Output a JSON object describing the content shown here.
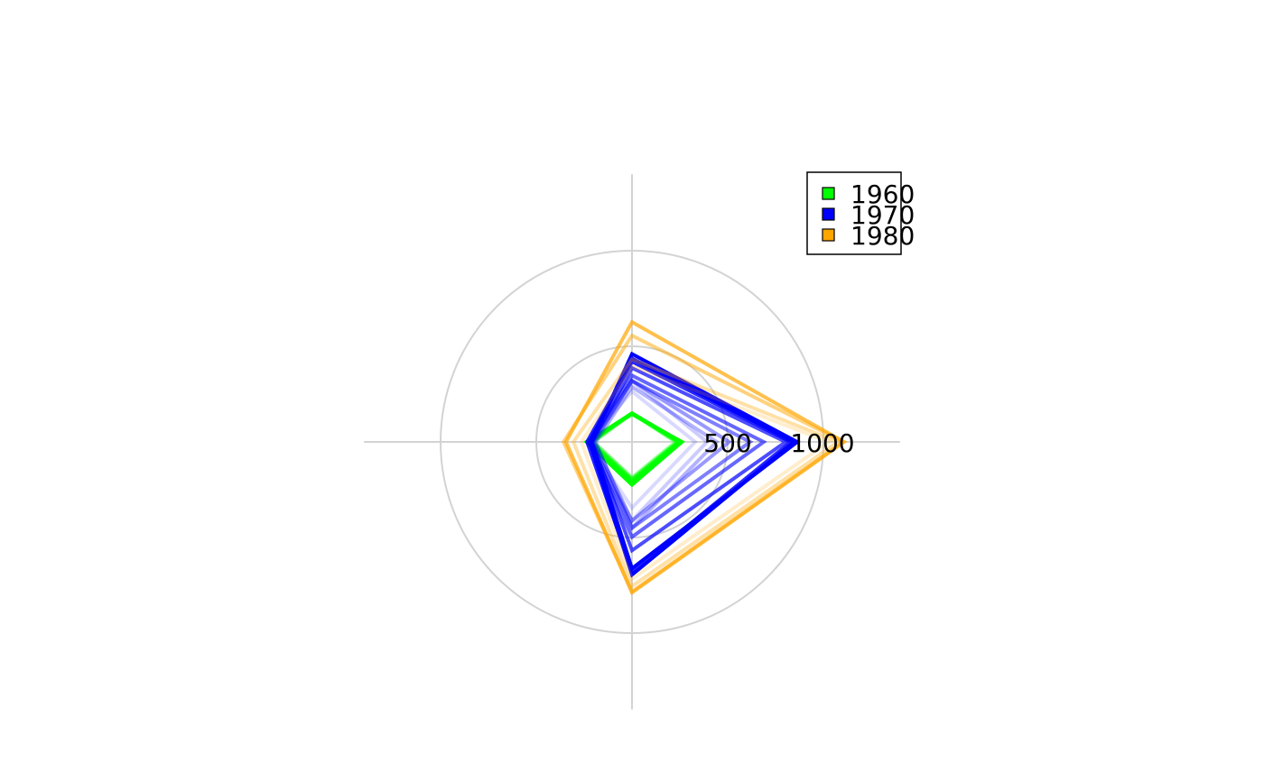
{
  "chart_data": {
    "type": "radar",
    "title": "",
    "xlabel": "",
    "ylabel": "",
    "axes": 4,
    "rlim": [
      0,
      1400
    ],
    "rings": [
      500,
      1000
    ],
    "ring_labels": [
      "500",
      "1000"
    ],
    "grid": true,
    "legend_position": "top-right",
    "legend": [
      {
        "label": "1960",
        "color": "#00ff00"
      },
      {
        "label": "1970",
        "color": "#0000ff"
      },
      {
        "label": "1980",
        "color": "#ffa500"
      }
    ],
    "series": [
      {
        "decade": "1960",
        "opacity": 0.35,
        "values": [
          226,
          186,
          200,
          148
        ]
      },
      {
        "decade": "1960",
        "opacity": 0.55,
        "values": [
          237,
          193,
          207,
          150
        ]
      },
      {
        "decade": "1960",
        "opacity": 0.75,
        "values": [
          243,
          200,
          217,
          149
        ]
      },
      {
        "decade": "1960",
        "opacity": 1.0,
        "values": [
          250,
          212,
          226,
          150
        ]
      },
      {
        "decade": "1960",
        "opacity": 1.0,
        "values": [
          255,
          212,
          233,
          150
        ]
      },
      {
        "decade": "1960",
        "opacity": 1.0,
        "values": [
          261,
          224,
          238,
          145
        ]
      },
      {
        "decade": "1970",
        "opacity": 0.15,
        "values": [
          330,
          345,
          231,
          264
        ]
      },
      {
        "decade": "1970",
        "opacity": 0.2,
        "values": [
          392,
          412,
          235,
          318
        ]
      },
      {
        "decade": "1970",
        "opacity": 0.3,
        "values": [
          442,
          450,
          189,
          288
        ]
      },
      {
        "decade": "1970",
        "opacity": 0.4,
        "values": [
          508,
          413,
          198,
          320
        ]
      },
      {
        "decade": "1970",
        "opacity": 0.5,
        "values": [
          617,
          450,
          212,
          320
        ]
      },
      {
        "decade": "1970",
        "opacity": 0.6,
        "values": [
          688,
          497,
          221,
          347
        ]
      },
      {
        "decade": "1970",
        "opacity": 0.7,
        "values": [
          803,
          568,
          207,
          387
        ]
      },
      {
        "decade": "1970",
        "opacity": 0.85,
        "values": [
          829,
          677,
          235,
          420
        ]
      },
      {
        "decade": "1970",
        "opacity": 1.0,
        "values": [
          845,
          695,
          221,
          436
        ]
      },
      {
        "decade": "1970",
        "opacity": 1.0,
        "values": [
          863,
          662,
          211,
          460
        ]
      },
      {
        "decade": "1980",
        "opacity": 0.2,
        "values": [
          1028,
          717,
          264,
          396
        ]
      },
      {
        "decade": "1980",
        "opacity": 0.35,
        "values": [
          1075,
          755,
          306,
          432
        ]
      },
      {
        "decade": "1980",
        "opacity": 0.5,
        "values": [
          1103,
          783,
          358,
          556
        ]
      },
      {
        "decade": "1980",
        "opacity": 0.7,
        "values": [
          1108,
          788,
          345,
          627
        ]
      }
    ]
  }
}
